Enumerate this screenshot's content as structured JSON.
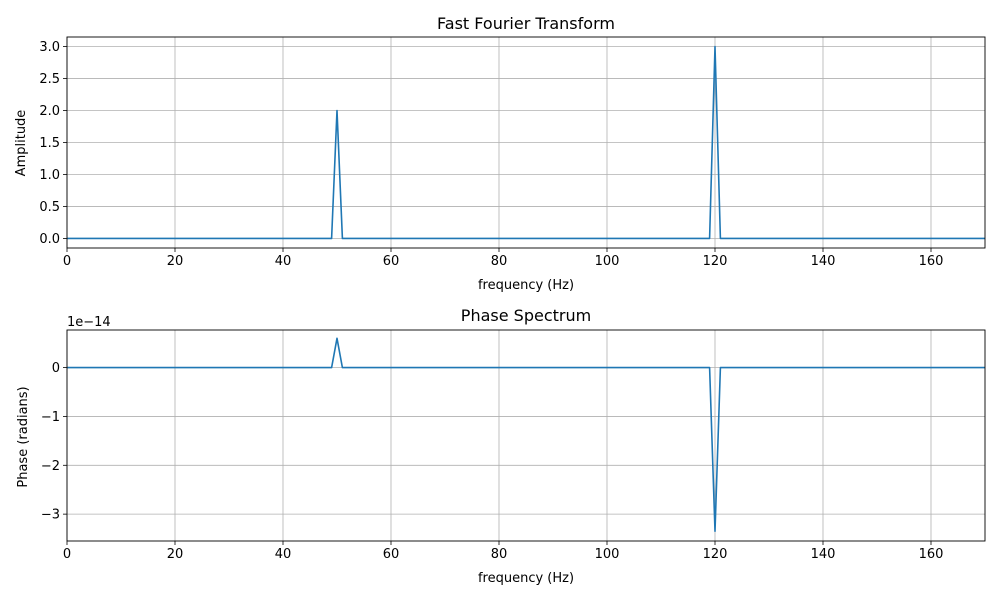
{
  "chart_data": [
    {
      "type": "line",
      "title": "Fast Fourier Transform",
      "xlabel": "frequency (Hz)",
      "ylabel": "Amplitude",
      "xlim": [
        0,
        170
      ],
      "ylim": [
        -0.15,
        3.15
      ],
      "xticks": [
        0,
        20,
        40,
        60,
        80,
        100,
        120,
        140,
        160
      ],
      "yticks": [
        0.0,
        0.5,
        1.0,
        1.5,
        2.0,
        2.5,
        3.0
      ],
      "ytick_labels": [
        "0.0",
        "0.5",
        "1.0",
        "1.5",
        "2.0",
        "2.5",
        "3.0"
      ],
      "offset_label": "",
      "grid": true,
      "color": "#1f77b4",
      "series": [
        {
          "x": [
            0,
            49,
            50,
            51,
            119,
            120,
            121,
            170
          ],
          "y": [
            0,
            0,
            2.0,
            0,
            0,
            3.0,
            0,
            0
          ]
        }
      ]
    },
    {
      "type": "line",
      "title": "Phase Spectrum",
      "xlabel": "frequency (Hz)",
      "ylabel": "Phase (radians)",
      "xlim": [
        0,
        170
      ],
      "ylim": [
        -3.55,
        0.77
      ],
      "xticks": [
        0,
        20,
        40,
        60,
        80,
        100,
        120,
        140,
        160
      ],
      "yticks": [
        0,
        -1,
        -2,
        -3
      ],
      "ytick_labels": [
        "0",
        "−1",
        "−2",
        "−3"
      ],
      "offset_label": "1e−14",
      "grid": true,
      "color": "#1f77b4",
      "series": [
        {
          "x": [
            0,
            49,
            50,
            51,
            119,
            120,
            121,
            170
          ],
          "y": [
            0,
            0,
            0.6,
            0,
            0,
            -3.35,
            0,
            0
          ]
        }
      ]
    }
  ]
}
